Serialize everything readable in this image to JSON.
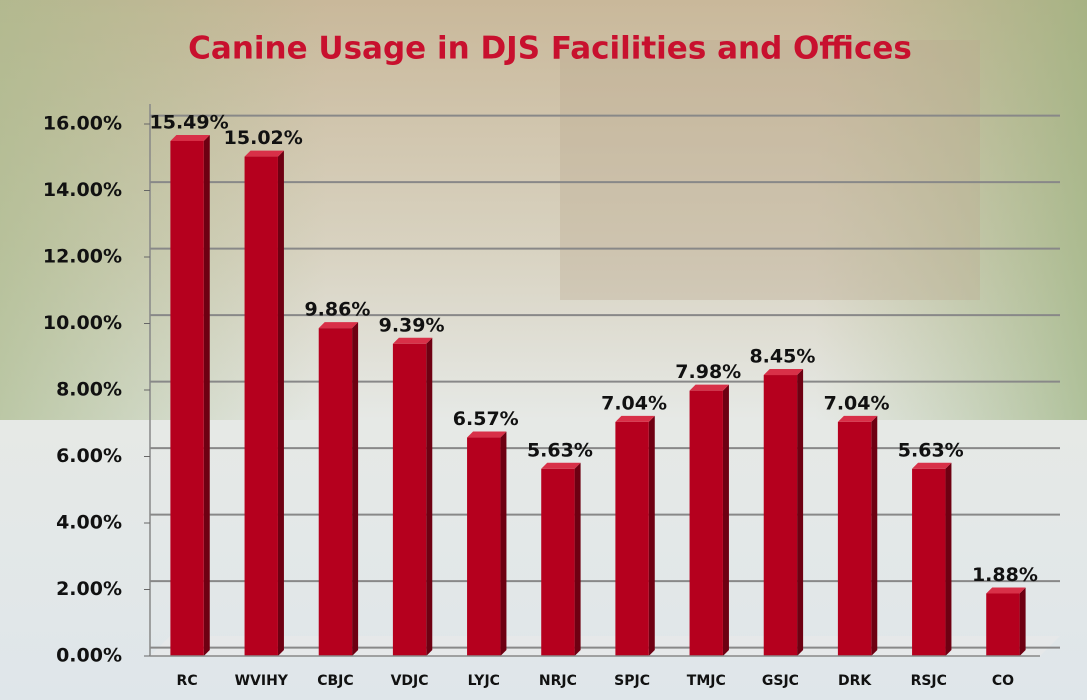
{
  "chart_data": {
    "type": "bar",
    "title": "Canine Usage in DJS Facilities and Offices",
    "categories": [
      "RC",
      "WVIHY",
      "CBJC",
      "VDJC",
      "LYJC",
      "NRJC",
      "SPJC",
      "TMJC",
      "GSJC",
      "DRK",
      "RSJC",
      "CO"
    ],
    "values": [
      15.49,
      15.02,
      9.86,
      9.39,
      6.57,
      5.63,
      7.04,
      7.98,
      8.45,
      7.04,
      5.63,
      1.88
    ],
    "value_labels": [
      "15.49%",
      "15.02%",
      "9.86%",
      "9.39%",
      "6.57%",
      "5.63%",
      "7.04%",
      "7.98%",
      "8.45%",
      "7.04%",
      "5.63%",
      "1.88%"
    ],
    "color": "#b5001e",
    "ylim": [
      0,
      16
    ],
    "yticks": [
      {
        "value": 0,
        "label": "0.00%"
      },
      {
        "value": 2,
        "label": "2.00%"
      },
      {
        "value": 4,
        "label": "4.00%"
      },
      {
        "value": 6,
        "label": "6.00%"
      },
      {
        "value": 8,
        "label": "8.00%"
      },
      {
        "value": 10,
        "label": "10.00%"
      },
      {
        "value": 12,
        "label": "12.00%"
      },
      {
        "value": 14,
        "label": "14.00%"
      },
      {
        "value": 16,
        "label": "16.00%"
      }
    ],
    "grid": true
  }
}
